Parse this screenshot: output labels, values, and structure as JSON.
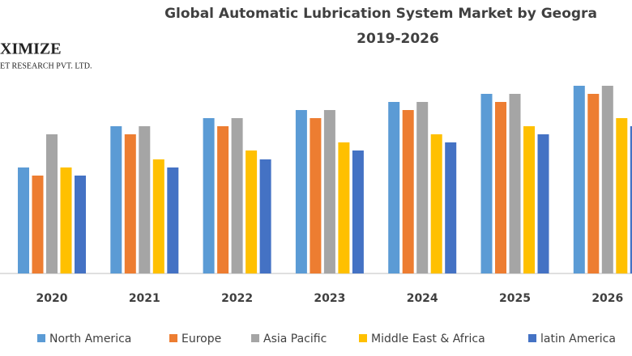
{
  "logo": {
    "name": "XIMIZE",
    "subtitle": "ET RESEARCH PVT. LTD."
  },
  "chart_data": {
    "type": "bar",
    "title": "Global Automatic Lubrication System Market by Geogra",
    "subtitle": "2019-2026",
    "categories": [
      "2020",
      "2021",
      "2022",
      "2023",
      "2024",
      "2025",
      "2026"
    ],
    "series": [
      {
        "name": "North America",
        "color": "#5b9bd5",
        "values": [
          131,
          182,
          192,
          202,
          212,
          222,
          232
        ]
      },
      {
        "name": "Europe",
        "color": "#ed7d31",
        "values": [
          121,
          172,
          182,
          192,
          202,
          212,
          222
        ]
      },
      {
        "name": "Asia Pacific",
        "color": "#a5a5a5",
        "values": [
          172,
          182,
          192,
          202,
          212,
          222,
          232
        ]
      },
      {
        "name": "Middle East & Africa",
        "color": "#ffc000",
        "values": [
          131,
          141,
          152,
          162,
          172,
          182,
          192
        ]
      },
      {
        "name": "latin  America",
        "color": "#4472c4",
        "values": [
          121,
          131,
          141,
          152,
          162,
          172,
          182
        ]
      }
    ],
    "ylim": [
      0,
      240
    ]
  }
}
